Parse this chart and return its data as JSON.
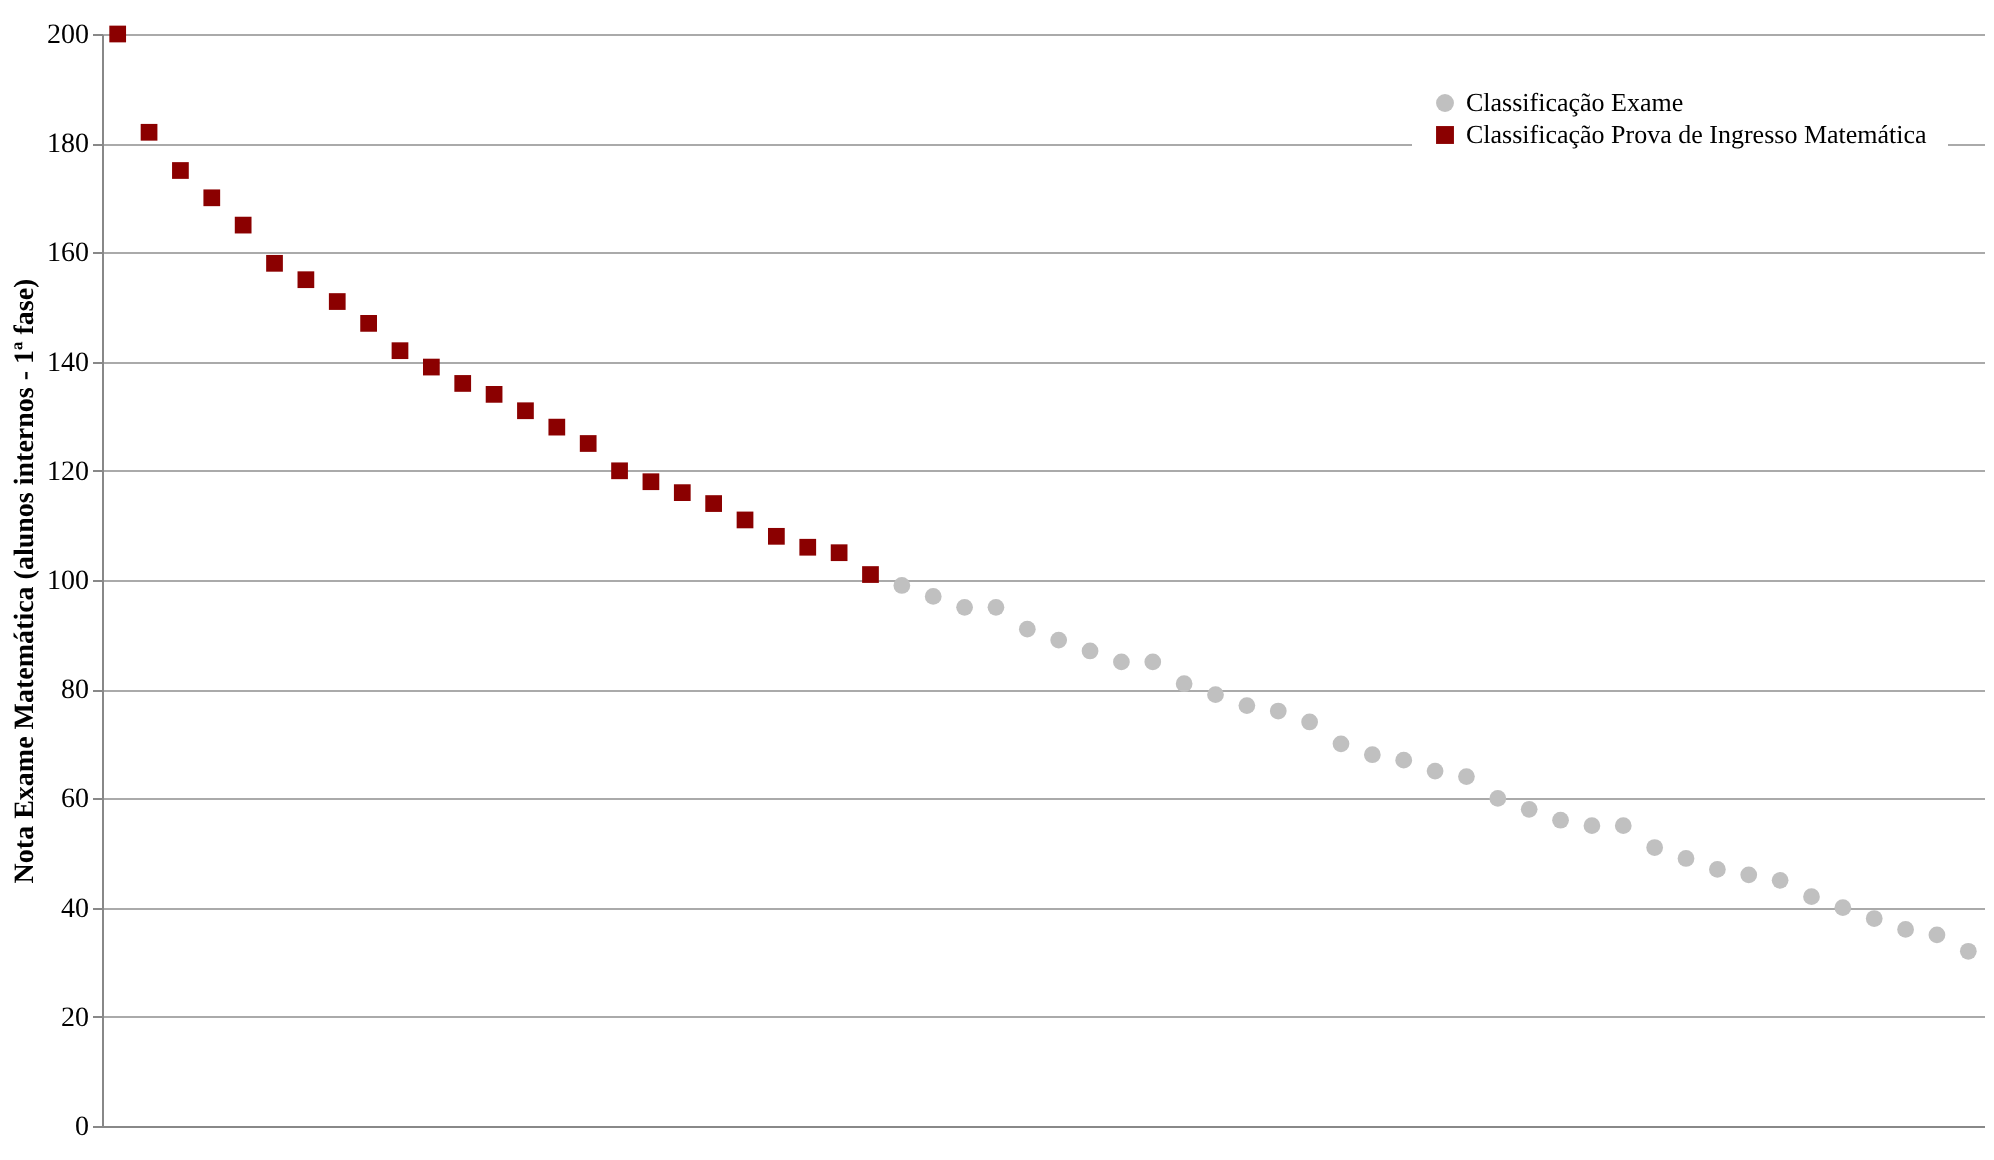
{
  "chart_data": {
    "type": "scatter",
    "ylabel": "Nota Exame Matemática (alunos internos - 1ª fase)",
    "categories": [
      null,
      null,
      null,
      null,
      null,
      null,
      null,
      null,
      null,
      null,
      null,
      null,
      null,
      null,
      null,
      null,
      null,
      null,
      null,
      null,
      null,
      null,
      null,
      null,
      null,
      null,
      null,
      null,
      null,
      null,
      null,
      null,
      null,
      null,
      null,
      null,
      null,
      null,
      null,
      null,
      null,
      null,
      null,
      null,
      null,
      null,
      null,
      null,
      null,
      null,
      null,
      null,
      null,
      null,
      null,
      null,
      null,
      null,
      null,
      null
    ],
    "series": [
      {
        "name": "Classificação Exame",
        "color": "#c0c0c0",
        "marker": "circle",
        "values": [
          null,
          null,
          null,
          null,
          null,
          null,
          null,
          null,
          null,
          null,
          null,
          null,
          null,
          null,
          null,
          null,
          null,
          null,
          null,
          null,
          null,
          null,
          null,
          null,
          null,
          99,
          97,
          95,
          95,
          91,
          89,
          87,
          85,
          85,
          81,
          79,
          77,
          76,
          74,
          70,
          68,
          67,
          65,
          64,
          60,
          58,
          56,
          55,
          55,
          51,
          49,
          47,
          46,
          45,
          42,
          40,
          38,
          36,
          35,
          32
        ]
      },
      {
        "name": "Classificação Prova de Ingresso Matemática",
        "color": "#8b0000",
        "marker": "square",
        "values": [
          200,
          182,
          175,
          170,
          165,
          158,
          155,
          151,
          147,
          142,
          139,
          136,
          134,
          131,
          128,
          125,
          120,
          118,
          116,
          114,
          111,
          108,
          106,
          105,
          101,
          null,
          null,
          null,
          null,
          null,
          null,
          null,
          null,
          null,
          null,
          null,
          null,
          null,
          null,
          null,
          null,
          null,
          null,
          null,
          null,
          null,
          null,
          null,
          null,
          null,
          null,
          null,
          null,
          null,
          null,
          null,
          null,
          null,
          null,
          null
        ]
      }
    ],
    "ylim": [
      0,
      200
    ],
    "yticks": [
      0,
      20,
      40,
      60,
      80,
      100,
      120,
      140,
      160,
      180,
      200
    ],
    "grid": "y",
    "legend": "top right",
    "tick_labels": "y"
  }
}
